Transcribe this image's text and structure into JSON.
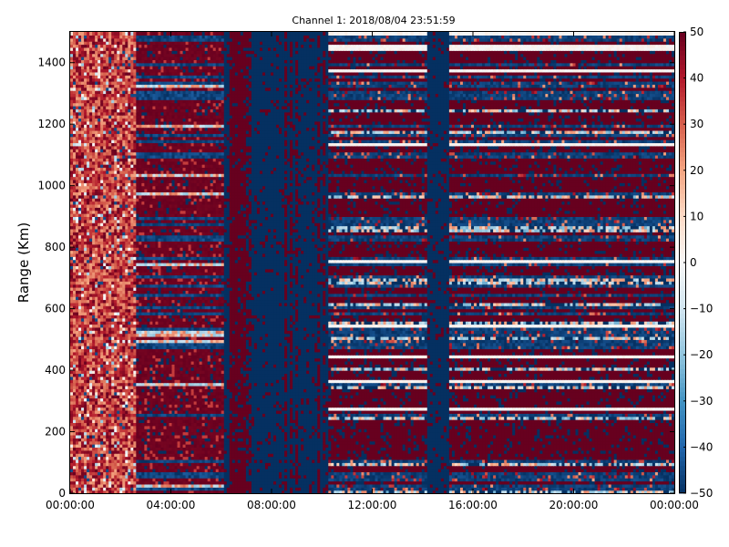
{
  "chart_data": {
    "type": "heatmap",
    "title": "Channel 1: 2018/08/04 23:51:59",
    "xlabel": "",
    "ylabel": "Range (Km)",
    "x_ticks": [
      "00:00:00",
      "04:00:00",
      "08:00:00",
      "12:00:00",
      "16:00:00",
      "20:00:00",
      "00:00:00"
    ],
    "x_range_hours": [
      0,
      24
    ],
    "y_ticks": [
      0,
      200,
      400,
      600,
      800,
      1000,
      1200,
      1400
    ],
    "ylim": [
      0,
      1500
    ],
    "colorbar": {
      "ticks": [
        -50,
        -40,
        -30,
        -20,
        -10,
        0,
        10,
        20,
        30,
        40,
        50
      ],
      "range": [
        -50,
        50
      ],
      "colormap": "RdBu_r",
      "low_color": "#053061",
      "mid_color": "#f7f7f7",
      "high_color": "#67001f"
    },
    "grid": false,
    "regions": [
      {
        "x_start_hour": 0.0,
        "x_end_hour": 2.6,
        "level": 35,
        "variability": 15
      },
      {
        "x_start_hour": 2.6,
        "x_end_hour": 6.1,
        "level": 50,
        "variability": "mixed"
      },
      {
        "x_start_hour": 6.1,
        "x_end_hour": 6.3,
        "level": -50,
        "variability": "low"
      },
      {
        "x_start_hour": 6.3,
        "x_end_hour": 7.0,
        "level": 50,
        "variability": "low"
      },
      {
        "x_start_hour": 7.0,
        "x_end_hour": 10.3,
        "level": -50,
        "variability": "vertical streaks of 50"
      },
      {
        "x_start_hour": 10.3,
        "x_end_hour": 14.2,
        "level": 50,
        "variability": "horizontal bands of -50"
      },
      {
        "x_start_hour": 14.2,
        "x_end_hour": 15.1,
        "level": -50,
        "variability": "low"
      },
      {
        "x_start_hour": 15.1,
        "x_end_hour": 24.0,
        "level": 50,
        "variability": "horizontal bands of -50"
      }
    ]
  }
}
